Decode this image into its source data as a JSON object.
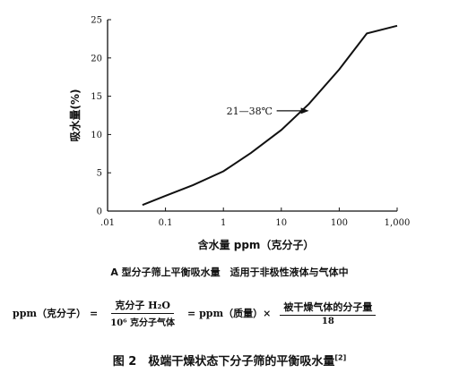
{
  "chart_data": {
    "type": "line",
    "xscale": "log",
    "x_ticks": [
      0.01,
      0.1,
      1,
      10,
      100,
      1000
    ],
    "x_tick_labels": [
      ".01",
      "0.1",
      "1",
      "10",
      "100",
      "1,000"
    ],
    "y_ticks": [
      0,
      5,
      10,
      15,
      20,
      25
    ],
    "y_tick_labels": [
      "0",
      "5",
      "10",
      "15",
      "20",
      "25"
    ],
    "xlim": [
      0.01,
      1000
    ],
    "ylim": [
      0,
      25
    ],
    "xlabel": "含水量 ppm（克分子）",
    "ylabel": "吸水量(%)",
    "grid": false,
    "series": [
      {
        "name": "21—38℃",
        "x": [
          0.04,
          0.1,
          0.3,
          1,
          3,
          10,
          30,
          100,
          300,
          1000
        ],
        "y": [
          0.8,
          2.0,
          3.4,
          5.2,
          7.6,
          10.6,
          14.0,
          18.5,
          23.2,
          24.2
        ]
      }
    ],
    "annotation": {
      "text": "21—38℃",
      "x": 30,
      "y": 13.1
    }
  },
  "subtitle": "A 型分子筛上平衡吸水量　适用于非极性液体与气体中",
  "formula": {
    "lhs": "ppm（克分子）",
    "eq1": "=",
    "frac1_num": "克分子 H₂O",
    "frac1_den": "10⁶ 克分子气体",
    "eq2": "= ppm（质量）×",
    "frac2_num": "被干燥气体的分子量",
    "frac2_den": "18"
  },
  "caption": {
    "text": "图 2　极端干燥状态下分子筛的平衡吸水量",
    "ref": "[2]"
  }
}
